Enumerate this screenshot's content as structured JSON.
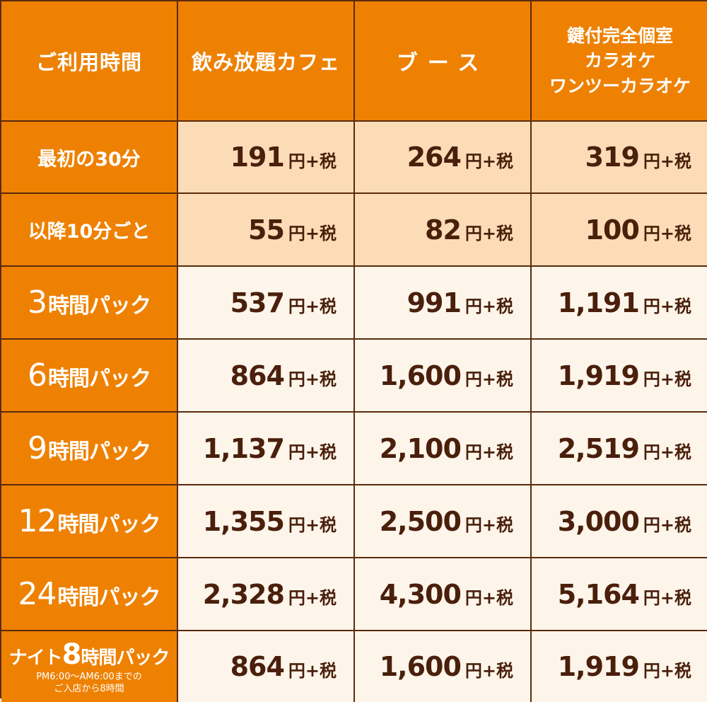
{
  "header": {
    "usage_time": "ご利用時間",
    "columns": [
      {
        "lines": [
          "飲み放題カフェ"
        ]
      },
      {
        "lines": [
          "ブース"
        ]
      },
      {
        "lines": [
          "鍵付完全個室",
          "カラオケ",
          "ワンツーカラオケ"
        ]
      }
    ]
  },
  "price_suffix": "円+税",
  "rows": [
    {
      "label": "最初の30分",
      "prices": [
        "191",
        "264",
        "319"
      ]
    },
    {
      "label": "以降10分ごと",
      "prices": [
        "55",
        "82",
        "100"
      ]
    },
    {
      "num": "3",
      "text": "時間パック",
      "prices": [
        "537",
        "991",
        "1,191"
      ]
    },
    {
      "num": "6",
      "text": "時間パック",
      "prices": [
        "864",
        "1,600",
        "1,919"
      ]
    },
    {
      "num": "9",
      "text": "時間パック",
      "prices": [
        "1,137",
        "2,100",
        "2,519"
      ]
    },
    {
      "num": "12",
      "text": "時間パック",
      "prices": [
        "1,355",
        "2,500",
        "3,000"
      ]
    },
    {
      "num": "24",
      "text": "時間パック",
      "prices": [
        "2,328",
        "4,300",
        "5,164"
      ]
    },
    {
      "prefix": "ナイト",
      "num": "8",
      "text": "時間パック",
      "note": [
        "PM6:00～AM6:00までの",
        "ご入店から8時間"
      ],
      "prices": [
        "864",
        "1,600",
        "1,919"
      ]
    }
  ],
  "colors": {
    "header_bg": "#ee8102",
    "tint_bg": "#fbdcb6",
    "plain_bg": "#fdf5ea",
    "price_text": "#4a1f0b"
  }
}
